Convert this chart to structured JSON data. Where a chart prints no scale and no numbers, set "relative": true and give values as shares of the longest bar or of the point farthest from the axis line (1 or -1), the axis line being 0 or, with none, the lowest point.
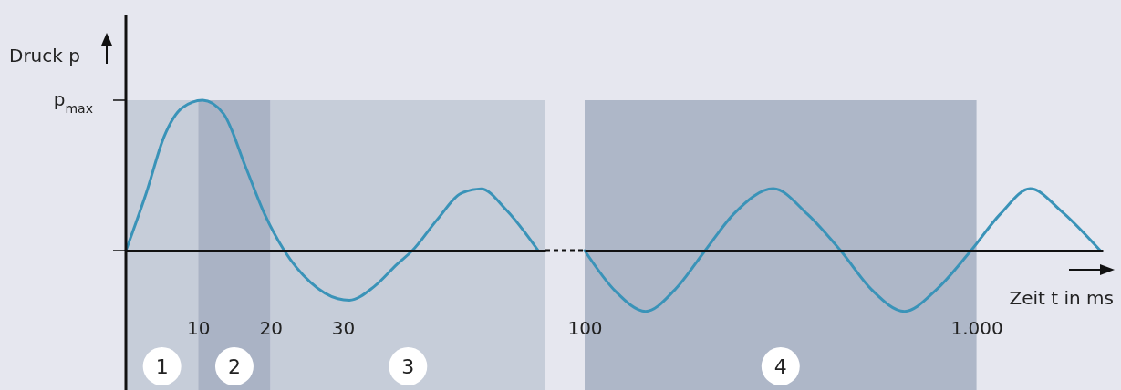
{
  "chart_data": [
    {
      "type": "line",
      "ylabel": "Druck p",
      "xlim": [
        0,
        58
      ],
      "xticks": [
        10,
        20,
        30
      ],
      "relative": true,
      "annotations": [
        "p$_{max}$"
      ],
      "series": [
        {
          "color": "#3a93b8",
          "x": [
            0,
            2.8,
            5.3,
            7.8,
            10.6,
            13.5,
            16.6,
            19.2,
            21.9,
            25.5,
            29.3,
            30.9,
            34.3,
            37.5,
            39.6,
            43.1,
            46.3,
            49.1,
            52.6,
            57
          ],
          "values": [
            0,
            0.38,
            0.76,
            0.95,
            1,
            0.91,
            0.55,
            0.24,
            0,
            -0.21,
            -0.32,
            -0.33,
            -0.24,
            -0.09,
            0,
            0.21,
            0.38,
            0.41,
            0.27,
            0
          ]
        }
      ],
      "bands": [
        {
          "axis": "x",
          "from": 0,
          "to": 10,
          "label": "1",
          "color": "#c6cdd9"
        },
        {
          "axis": "x",
          "from": 10,
          "to": 20,
          "label": "2",
          "color": "#aab3c5"
        },
        {
          "axis": "x",
          "from": 20,
          "to": 58,
          "label": "3",
          "color": "#c6cdd9"
        }
      ],
      "marker": "none",
      "line_style": "solid"
    },
    {
      "type": "line",
      "xlabel": "Zeit t in ms",
      "log": "x",
      "xlim": [
        100,
        2100
      ],
      "xticks": [
        100,
        {
          "value": 1000,
          "label": "1.000"
        }
      ],
      "relative": true,
      "tick_labels": "x",
      "series": [
        {
          "color": "#3a93b8",
          "x": [
            100,
            120,
            143,
            170,
            203,
            240,
            303,
            370,
            450,
            540,
            655,
            790,
            968,
            1150,
            1371,
            1650,
            2070
          ],
          "values": [
            0,
            -0.66,
            -0.98,
            -0.63,
            0,
            0.59,
            1,
            0.59,
            0,
            -0.63,
            -0.98,
            -0.63,
            0,
            0.59,
            1,
            0.63,
            0
          ]
        }
      ],
      "bands": [
        {
          "axis": "x",
          "from": 100,
          "to": 1000,
          "label": "4",
          "color": "#aeb7c8"
        }
      ],
      "marker": "none",
      "line_style": "solid"
    }
  ]
}
